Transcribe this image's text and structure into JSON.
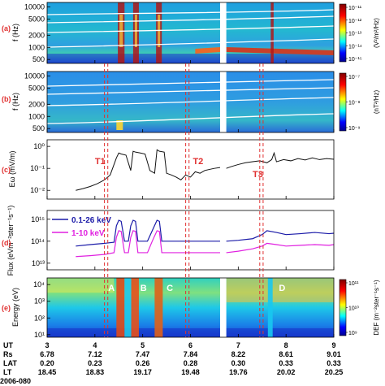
{
  "figure": {
    "panel_letters": [
      "(a)",
      "(b)",
      "(c)",
      "(d)",
      "(e)"
    ],
    "event_markers": [
      "T1",
      "T2",
      "T3"
    ],
    "region_labels": [
      "A",
      "B",
      "C",
      "D"
    ],
    "date_label": "2006-080",
    "colors": {
      "marker": "#e03030",
      "panel_letter": "#e03030",
      "line_black": "#111111",
      "flux_high": "#1a1aa8",
      "flux_low": "#e020e0",
      "contour": "#ffffff"
    }
  },
  "chart_data": [
    {
      "type": "heatmap",
      "panel": "(a)",
      "ylabel": "f (Hz)",
      "yscale": "log",
      "yticks": [
        "500",
        "1000",
        "2000",
        "5000",
        "10000"
      ],
      "colorbar_label": "(V²/m²/Hz)",
      "colorbar_ticks": [
        "10⁻¹¹",
        "10⁻¹²",
        "10⁻¹³",
        "10⁻¹⁴",
        "10⁻¹⁵"
      ],
      "data_gap_ut": [
        6.62,
        6.75
      ]
    },
    {
      "type": "heatmap",
      "panel": "(b)",
      "ylabel": "f (Hz)",
      "yscale": "log",
      "yticks": [
        "500",
        "1000",
        "2000",
        "5000",
        "10000"
      ],
      "colorbar_label": "(nT²/Hz)",
      "colorbar_ticks": [
        "10⁻⁷",
        "10⁻⁸",
        "10⁻⁹"
      ]
    },
    {
      "type": "line",
      "panel": "(c)",
      "ylabel": "Eω (mV/m)",
      "yscale": "log",
      "yticks": [
        "10⁻²",
        "10⁻¹",
        "10⁰"
      ],
      "x": [
        3.6,
        3.75,
        3.9,
        4.05,
        4.2,
        4.32,
        4.45,
        4.5,
        4.55,
        4.65,
        4.75,
        4.8,
        4.85,
        4.95,
        5.05,
        5.15,
        5.25,
        5.3,
        5.35,
        5.45,
        5.5,
        5.6,
        5.7,
        5.8,
        5.9,
        6.0,
        6.1,
        6.2,
        6.3,
        6.4,
        6.5,
        6.62,
        6.75,
        6.85,
        7.0,
        7.15,
        7.3,
        7.45,
        7.6,
        7.7,
        7.75,
        7.8,
        7.95,
        8.1,
        8.25,
        8.4,
        8.55,
        8.7,
        8.85,
        9.0
      ],
      "values": [
        0.01,
        0.012,
        0.015,
        0.02,
        0.03,
        0.05,
        0.3,
        0.5,
        0.45,
        0.4,
        0.08,
        0.6,
        0.55,
        0.5,
        0.45,
        0.08,
        0.06,
        0.7,
        0.6,
        0.55,
        0.06,
        0.05,
        0.04,
        0.03,
        0.05,
        0.04,
        0.07,
        0.06,
        0.08,
        0.09,
        0.1,
        0.11,
        0.1,
        0.12,
        0.15,
        0.18,
        0.2,
        0.22,
        0.18,
        0.25,
        0.5,
        0.2,
        0.25,
        0.22,
        0.28,
        0.24,
        0.3,
        0.25,
        0.28,
        0.26
      ]
    },
    {
      "type": "line",
      "panel": "(d)",
      "ylabel": "Flux (eVm⁻²ster⁻¹s⁻¹)",
      "yscale": "log",
      "yticks": [
        "10¹³",
        "10¹⁴",
        "10¹⁵"
      ],
      "series": [
        {
          "name": "0.1-26 keV",
          "x": [
            3.6,
            3.9,
            4.2,
            4.4,
            4.45,
            4.5,
            4.55,
            4.62,
            4.7,
            4.75,
            4.8,
            4.85,
            4.9,
            5.0,
            5.1,
            5.2,
            5.3,
            5.35,
            5.4,
            5.5,
            5.6,
            5.8,
            6.0,
            6.2,
            6.5,
            6.62,
            6.75,
            7.0,
            7.3,
            7.5,
            7.6,
            7.8,
            8.0,
            8.3,
            8.6,
            8.9,
            9.0
          ],
          "values": [
            60000000000000.0,
            70000000000000.0,
            80000000000000.0,
            90000000000000.0,
            500000000000000.0,
            900000000000000.0,
            800000000000000.0,
            100000000000000.0,
            100000000000000.0,
            500000000000000.0,
            900000000000000.0,
            800000000000000.0,
            100000000000000.0,
            100000000000000.0,
            100000000000000.0,
            300000000000000.0,
            900000000000000.0,
            800000000000000.0,
            100000000000000.0,
            100000000000000.0,
            100000000000000.0,
            100000000000000.0,
            100000000000000.0,
            100000000000000.0,
            100000000000000.0,
            100000000000000.0,
            100000000000000.0,
            110000000000000.0,
            130000000000000.0,
            200000000000000.0,
            300000000000000.0,
            250000000000000.0,
            200000000000000.0,
            220000000000000.0,
            250000000000000.0,
            220000000000000.0,
            230000000000000.0
          ]
        },
        {
          "name": "1-10 keV",
          "x": [
            3.6,
            3.9,
            4.2,
            4.4,
            4.45,
            4.5,
            4.55,
            4.62,
            4.7,
            4.75,
            4.8,
            4.85,
            4.9,
            5.0,
            5.1,
            5.2,
            5.3,
            5.35,
            5.4,
            5.5,
            5.6,
            5.8,
            6.0,
            6.2,
            6.5,
            6.62,
            6.75,
            7.0,
            7.3,
            7.5,
            7.6,
            7.8,
            8.0,
            8.3,
            8.6,
            8.9,
            9.0
          ],
          "values": [
            20000000000000.0,
            22000000000000.0,
            25000000000000.0,
            30000000000000.0,
            150000000000000.0,
            300000000000000.0,
            280000000000000.0,
            30000000000000.0,
            30000000000000.0,
            150000000000000.0,
            300000000000000.0,
            280000000000000.0,
            30000000000000.0,
            30000000000000.0,
            30000000000000.0,
            100000000000000.0,
            300000000000000.0,
            280000000000000.0,
            30000000000000.0,
            30000000000000.0,
            30000000000000.0,
            30000000000000.0,
            30000000000000.0,
            30000000000000.0,
            30000000000000.0,
            30000000000000.0,
            30000000000000.0,
            35000000000000.0,
            45000000000000.0,
            60000000000000.0,
            80000000000000.0,
            70000000000000.0,
            60000000000000.0,
            65000000000000.0,
            70000000000000.0,
            65000000000000.0,
            70000000000000.0
          ]
        }
      ]
    },
    {
      "type": "heatmap",
      "panel": "(e)",
      "ylabel": "Energy (eV)",
      "yscale": "log",
      "yticks": [
        "10¹",
        "10²",
        "10³",
        "10⁴"
      ],
      "colorbar_label": "DEF (m⁻²ster⁻¹s⁻¹)",
      "colorbar_ticks": [
        "10¹¹",
        "10¹⁰",
        "10⁹"
      ]
    }
  ],
  "axis": {
    "x_ticks": [
      "3",
      "4",
      "5",
      "6",
      "7",
      "8",
      "9"
    ],
    "ephemeris": [
      {
        "label": "UT",
        "values": [
          "3",
          "4",
          "5",
          "6",
          "7",
          "8",
          "9"
        ]
      },
      {
        "label": "Rs",
        "values": [
          "6.78",
          "7.12",
          "7.47",
          "7.84",
          "8.22",
          "8.61",
          "9.01"
        ]
      },
      {
        "label": "LAT",
        "values": [
          "0.20",
          "0.23",
          "0.26",
          "0.28",
          "0.30",
          "0.33",
          "0.33"
        ]
      },
      {
        "label": "LT",
        "values": [
          "18.45",
          "18.83",
          "19.17",
          "19.48",
          "19.76",
          "20.02",
          "20.25"
        ]
      }
    ]
  }
}
